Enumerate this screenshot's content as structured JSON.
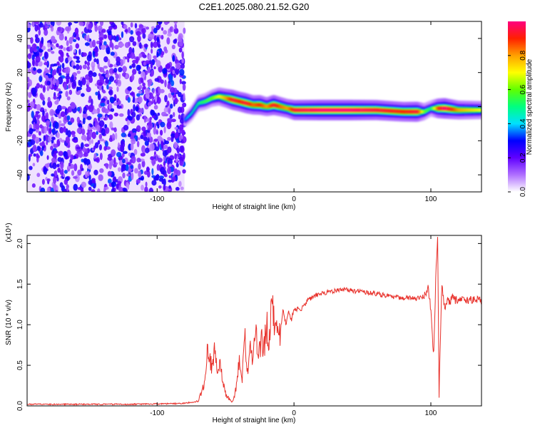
{
  "title": "C2E1.2025.080.21.52.G20",
  "chart_data": [
    {
      "type": "heatmap",
      "xlabel": "Height of straight line (km)",
      "ylabel": "Frequency (Hz)",
      "xlim": [
        -195,
        137
      ],
      "ylim": [
        -50,
        50
      ],
      "xticks": [
        -100,
        0,
        100
      ],
      "yticks": [
        -40,
        -20,
        0,
        20,
        40
      ],
      "colorbar": {
        "label": "Normalized spectral amplitude",
        "range": [
          0,
          1
        ],
        "ticks": [
          "0.0",
          "0.2",
          "0.4",
          "0.6",
          "0.8"
        ],
        "colors": [
          "#ffffff",
          "#b070ff",
          "#6000ff",
          "#0000ff",
          "#00e0ff",
          "#00ff80",
          "#60ff00",
          "#ffff00",
          "#ffa000",
          "#ff2000",
          "#ff0080"
        ]
      },
      "noise_region_x": [
        -195,
        -80
      ],
      "ridge": {
        "x": [
          -80,
          -75,
          -70,
          -65,
          -60,
          -55,
          -50,
          -45,
          -40,
          -35,
          -30,
          -25,
          -20,
          -15,
          -10,
          -5,
          0,
          20,
          40,
          60,
          80,
          90,
          95,
          100,
          105,
          110,
          120,
          137
        ],
        "y": [
          -8,
          -4,
          2,
          3,
          5,
          6,
          5,
          4,
          3,
          2,
          1,
          1,
          0,
          1,
          0,
          -1,
          -2,
          -2,
          -2,
          -2,
          -3,
          -3,
          -3,
          -1,
          -1,
          -1,
          -2,
          -2
        ],
        "amplitude": [
          0.35,
          0.45,
          0.5,
          0.55,
          0.6,
          0.7,
          0.8,
          0.95,
          0.9,
          0.95,
          0.85,
          0.9,
          0.8,
          0.95,
          0.85,
          0.8,
          0.95,
          1.0,
          1.0,
          0.95,
          0.9,
          0.95,
          0.6,
          0.5,
          0.9,
          1.0,
          0.8,
          0.7
        ]
      }
    },
    {
      "type": "line",
      "xlabel": "Height of straight line (km)",
      "ylabel": "SNR (10 * v/v)",
      "yscale_label": "(x10⁴)",
      "xlim": [
        -195,
        137
      ],
      "ylim": [
        0,
        2.1
      ],
      "xticks": [
        -100,
        0,
        100
      ],
      "yticks": [
        "0.0",
        "0.5",
        "1.0",
        "1.5",
        "2.0"
      ],
      "color": "#e8302a",
      "series": [
        {
          "x": [
            -195,
            -120,
            -80,
            -70,
            -66,
            -63,
            -60,
            -58,
            -56,
            -54,
            -52,
            -50,
            -48,
            -46,
            -44,
            -42,
            -40,
            -38,
            -36,
            -34,
            -32,
            -30,
            -28,
            -26,
            -24,
            -22,
            -20,
            -18,
            -16,
            -14,
            -12,
            -10,
            -8,
            -6,
            -4,
            -2,
            0,
            5,
            10,
            15,
            20,
            25,
            30,
            40,
            50,
            60,
            70,
            80,
            90,
            95,
            98,
            100,
            102,
            104,
            105,
            106,
            108,
            110,
            112,
            114,
            116,
            118,
            120,
            125,
            130,
            137
          ],
          "y": [
            0.02,
            0.02,
            0.03,
            0.06,
            0.25,
            0.75,
            0.45,
            0.7,
            0.4,
            0.5,
            0.3,
            0.15,
            0.1,
            0.05,
            0.08,
            0.25,
            0.6,
            0.3,
            0.85,
            0.4,
            0.75,
            0.5,
            0.95,
            0.55,
            0.85,
            0.7,
            1.0,
            0.75,
            1.48,
            0.8,
            1.1,
            0.9,
            1.2,
            1.0,
            1.15,
            1.05,
            1.2,
            1.18,
            1.3,
            1.35,
            1.38,
            1.4,
            1.42,
            1.43,
            1.4,
            1.38,
            1.35,
            1.33,
            1.32,
            1.35,
            1.45,
            1.2,
            0.6,
            1.8,
            2.08,
            0.15,
            1.5,
            1.2,
            1.3,
            1.28,
            1.35,
            1.3,
            1.32,
            1.3,
            1.31,
            1.3
          ]
        }
      ]
    }
  ]
}
